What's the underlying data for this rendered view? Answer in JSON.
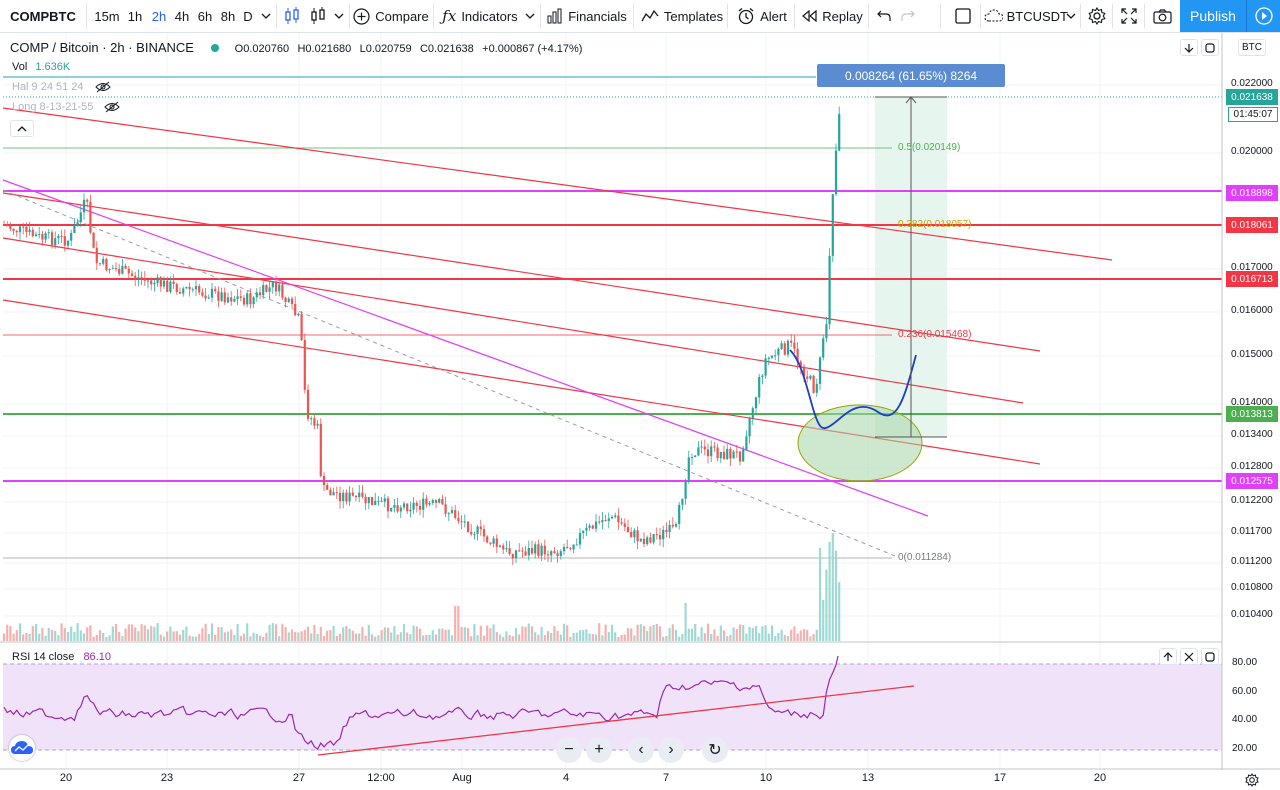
{
  "toolbar": {
    "symbol": "COMPBTC",
    "intervals": [
      "15m",
      "1h",
      "2h",
      "4h",
      "6h",
      "8h",
      "D"
    ],
    "active_interval": "2h",
    "compare": "Compare",
    "indicators": "Indicators",
    "financials": "Financials",
    "templates": "Templates",
    "alert": "Alert",
    "replay": "Replay",
    "watch_symbol": "BTCUSDT",
    "publish": "Publish"
  },
  "legend": {
    "title": "COMP / Bitcoin · 2h · BINANCE",
    "open": "O0.020760",
    "high": "H0.021680",
    "low": "L0.020759",
    "close": "C0.021638",
    "change": "+0.000867 (+4.17%)",
    "vol_label": "Vol",
    "vol_value": "1.636K",
    "hal_label": "Hal 9 24 51 24",
    "long_label": "Long 8-13-21-55",
    "rsi_label": "RSI 14 close",
    "rsi_value": "86.10"
  },
  "price_axis": {
    "currency": "BTC",
    "ticks": [
      "0.022000",
      "0.020000",
      "0.017000",
      "0.016000",
      "0.015000",
      "0.014000",
      "0.013400",
      "0.012800",
      "0.012200",
      "0.011700",
      "0.011200",
      "0.010800",
      "0.010400"
    ],
    "rsi_ticks": [
      "80.00",
      "60.00",
      "40.00",
      "20.00"
    ],
    "countdown": "01:45:07"
  },
  "price_labels": [
    {
      "text": "0.021638",
      "color": "#26a69a"
    },
    {
      "text": "0.018898",
      "color": "#e040fb"
    },
    {
      "text": "0.018061",
      "color": "#f23645"
    },
    {
      "text": "0.016713",
      "color": "#f23645"
    },
    {
      "text": "0.013813",
      "color": "#4caf50"
    },
    {
      "text": "0.012575",
      "color": "#e040fb"
    }
  ],
  "time_axis": [
    "20",
    "23",
    "27",
    "12:00",
    "Aug",
    "4",
    "7",
    "10",
    "13",
    "17",
    "20"
  ],
  "fib": [
    {
      "text": "0.5(0.020149)"
    },
    {
      "text": "0.382(0.018057)"
    },
    {
      "text": "0.236(0.015468)"
    },
    {
      "text": "0(0.011284)"
    }
  ],
  "measure_label": "0.008264 (61.65%) 8264",
  "navigation": {
    "zoom_out": "−",
    "zoom_in": "+",
    "left": "‹",
    "right": "›",
    "reset": "↻"
  },
  "colors": {
    "up": "#26a69a",
    "down": "#ef5350",
    "magenta": "#e040fb",
    "red": "#f23645",
    "green": "#4caf50",
    "rsi": "#7e57c2"
  }
}
